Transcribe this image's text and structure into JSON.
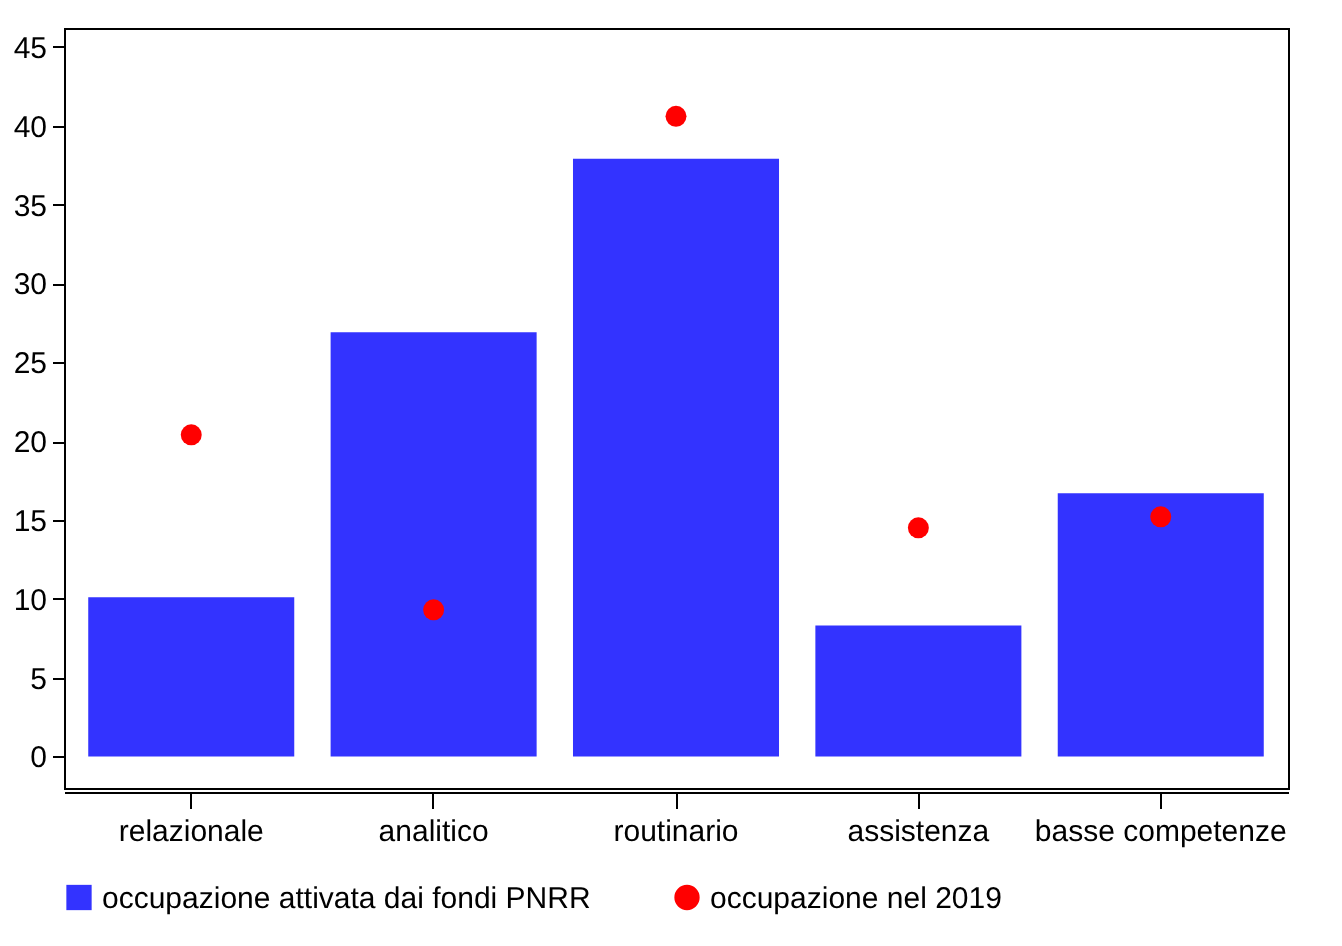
{
  "chart_data": {
    "type": "bar",
    "categories": [
      "relazionale",
      "analitico",
      "routinario",
      "assistenza",
      "basse competenze"
    ],
    "series": [
      {
        "name": "occupazione attivata dai fondi PNRR",
        "color": "#3333ff",
        "values": [
          10.1,
          26.9,
          37.9,
          8.3,
          16.7
        ]
      },
      {
        "name": "occupazione nel 2019",
        "type": "scatter",
        "marker": "circle",
        "color": "#ff0000",
        "values": [
          20.4,
          9.3,
          40.6,
          14.5,
          15.2
        ]
      }
    ],
    "ylim": [
      -2,
      46.2
    ],
    "yticks": [
      0,
      5,
      10,
      15,
      20,
      25,
      30,
      35,
      40,
      45
    ],
    "grid": false,
    "legend": "bottom"
  }
}
